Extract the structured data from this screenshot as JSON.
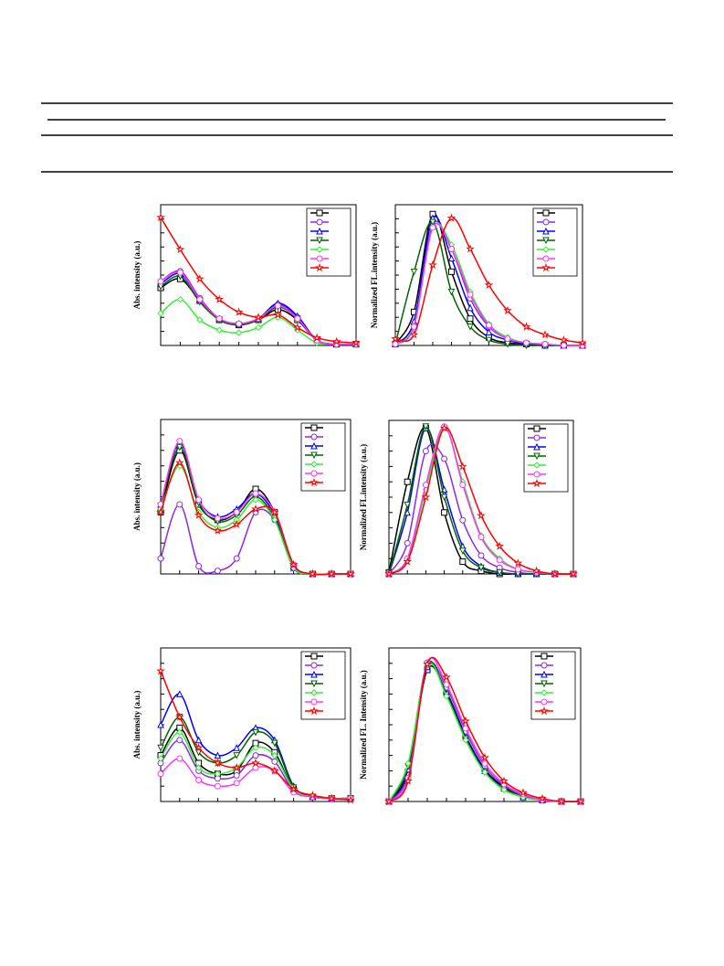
{
  "chart_data": [
    {
      "type": "line",
      "ylabel": "Abs. intensity (a.u.)",
      "x": [
        0,
        10,
        20,
        30,
        40,
        50,
        60,
        70,
        80,
        90,
        100
      ],
      "xlim": [
        0,
        100
      ],
      "ylim": [
        0,
        110
      ],
      "series": [
        {
          "color": "#000000",
          "values": [
            45,
            52,
            35,
            20,
            16,
            20,
            28,
            20,
            4,
            1,
            1
          ]
        },
        {
          "color": "#8a2be2",
          "values": [
            50,
            58,
            37,
            21,
            17,
            21,
            32,
            22,
            4,
            1,
            1
          ]
        },
        {
          "color": "#0000ff",
          "values": [
            48,
            56,
            36,
            21,
            17,
            21,
            33,
            23,
            4,
            1,
            1
          ]
        },
        {
          "color": "#006400",
          "values": [
            46,
            54,
            34,
            20,
            16,
            20,
            30,
            21,
            4,
            1,
            1
          ]
        },
        {
          "color": "#33ee33",
          "values": [
            25,
            36,
            20,
            12,
            10,
            14,
            22,
            12,
            2,
            1,
            1
          ]
        },
        {
          "color": "#ff33ff",
          "values": [
            50,
            57,
            36,
            21,
            17,
            21,
            31,
            21,
            4,
            1,
            1
          ]
        },
        {
          "color": "#ff0000",
          "values": [
            100,
            75,
            52,
            36,
            26,
            22,
            24,
            14,
            6,
            3,
            2
          ]
        }
      ]
    },
    {
      "type": "line",
      "ylabel": "Normalized FL.intensity (a.u.)",
      "x": [
        0,
        10,
        20,
        30,
        40,
        50,
        60,
        70,
        80,
        90,
        100
      ],
      "xlim": [
        0,
        100
      ],
      "ylim": [
        0,
        105
      ],
      "series": [
        {
          "color": "#000000",
          "values": [
            1,
            25,
            98,
            55,
            20,
            6,
            2,
            1,
            0,
            0,
            0
          ]
        },
        {
          "color": "#8a2be2",
          "values": [
            1,
            15,
            90,
            72,
            35,
            14,
            5,
            2,
            1,
            0,
            0
          ]
        },
        {
          "color": "#0000ff",
          "values": [
            1,
            18,
            95,
            65,
            28,
            10,
            4,
            1,
            0,
            0,
            0
          ]
        },
        {
          "color": "#006400",
          "values": [
            1,
            55,
            92,
            40,
            14,
            4,
            1,
            0,
            0,
            0,
            0
          ]
        },
        {
          "color": "#33ee33",
          "values": [
            1,
            15,
            88,
            75,
            40,
            16,
            6,
            2,
            1,
            0,
            0
          ]
        },
        {
          "color": "#ff33ff",
          "values": [
            1,
            14,
            88,
            72,
            38,
            15,
            5,
            2,
            1,
            0,
            0
          ]
        },
        {
          "color": "#ff0000",
          "values": [
            5,
            8,
            60,
            95,
            72,
            45,
            26,
            14,
            8,
            4,
            2
          ]
        }
      ]
    },
    {
      "type": "line",
      "ylabel": "Abs. intensity (a.u.)",
      "x": [
        0,
        10,
        20,
        30,
        40,
        50,
        60,
        70,
        80,
        90,
        100
      ],
      "xlim": [
        0,
        100
      ],
      "ylim": [
        0,
        100
      ],
      "series": [
        {
          "color": "#000000",
          "values": [
            40,
            80,
            45,
            35,
            40,
            55,
            40,
            5,
            0,
            0,
            0
          ]
        },
        {
          "color": "#8a2be2",
          "values": [
            10,
            45,
            5,
            2,
            10,
            40,
            35,
            5,
            0,
            0,
            0
          ]
        },
        {
          "color": "#0000ff",
          "values": [
            45,
            85,
            48,
            37,
            42,
            52,
            38,
            4,
            0,
            0,
            0
          ]
        },
        {
          "color": "#006400",
          "values": [
            44,
            82,
            46,
            34,
            38,
            50,
            36,
            4,
            0,
            0,
            0
          ]
        },
        {
          "color": "#33ee33",
          "values": [
            42,
            70,
            40,
            30,
            35,
            48,
            35,
            4,
            0,
            0,
            0
          ]
        },
        {
          "color": "#ff33ff",
          "values": [
            45,
            86,
            48,
            36,
            40,
            52,
            40,
            6,
            0,
            0,
            0
          ]
        },
        {
          "color": "#ff0000",
          "values": [
            40,
            72,
            38,
            28,
            32,
            42,
            40,
            6,
            0,
            0,
            0
          ]
        }
      ]
    },
    {
      "type": "line",
      "ylabel": "Normalized FL.intensity (a.u.)",
      "x": [
        0,
        10,
        20,
        30,
        40,
        50,
        60,
        70,
        80,
        90,
        100
      ],
      "xlim": [
        0,
        100
      ],
      "ylim": [
        0,
        100
      ],
      "series": [
        {
          "color": "#000000",
          "values": [
            1,
            60,
            95,
            40,
            8,
            2,
            0,
            0,
            0,
            0,
            0
          ]
        },
        {
          "color": "#8a2be2",
          "values": [
            0,
            20,
            80,
            75,
            35,
            12,
            4,
            1,
            0,
            0,
            0
          ]
        },
        {
          "color": "#0000ff",
          "values": [
            0,
            40,
            95,
            55,
            18,
            5,
            1,
            0,
            0,
            0,
            0
          ]
        },
        {
          "color": "#006400",
          "values": [
            0,
            45,
            96,
            50,
            15,
            4,
            1,
            0,
            0,
            0,
            0
          ]
        },
        {
          "color": "#33ee33",
          "values": [
            0,
            10,
            55,
            95,
            60,
            25,
            10,
            3,
            1,
            0,
            0
          ]
        },
        {
          "color": "#ff33ff",
          "values": [
            0,
            10,
            58,
            96,
            58,
            24,
            9,
            3,
            1,
            0,
            0
          ]
        },
        {
          "color": "#ff0000",
          "values": [
            0,
            8,
            50,
            95,
            70,
            38,
            18,
            7,
            2,
            0,
            0
          ]
        }
      ]
    },
    {
      "type": "line",
      "ylabel": "Abs. intensity (a.u.)",
      "x": [
        0,
        10,
        20,
        30,
        40,
        50,
        60,
        70,
        80,
        90,
        100
      ],
      "xlim": [
        0,
        100
      ],
      "ylim": [
        0,
        100
      ],
      "series": [
        {
          "color": "#000000",
          "values": [
            30,
            48,
            25,
            18,
            20,
            38,
            32,
            8,
            3,
            2,
            2
          ]
        },
        {
          "color": "#8a2be2",
          "values": [
            25,
            40,
            20,
            15,
            17,
            30,
            26,
            7,
            3,
            2,
            2
          ]
        },
        {
          "color": "#0000ff",
          "values": [
            50,
            70,
            40,
            30,
            35,
            48,
            40,
            10,
            3,
            2,
            2
          ]
        },
        {
          "color": "#006400",
          "values": [
            35,
            55,
            32,
            25,
            30,
            45,
            38,
            9,
            3,
            2,
            2
          ]
        },
        {
          "color": "#33ee33",
          "values": [
            28,
            45,
            22,
            18,
            22,
            35,
            30,
            8,
            3,
            2,
            2
          ]
        },
        {
          "color": "#ff33ff",
          "values": [
            18,
            28,
            14,
            10,
            12,
            22,
            20,
            6,
            3,
            2,
            2
          ]
        },
        {
          "color": "#ff0000",
          "values": [
            85,
            55,
            35,
            25,
            22,
            25,
            20,
            8,
            4,
            2,
            1
          ]
        }
      ]
    },
    {
      "type": "line",
      "ylabel": "Normalized FL. Intensity (a.u.)",
      "x": [
        0,
        10,
        20,
        30,
        40,
        50,
        60,
        70,
        80,
        90,
        100
      ],
      "xlim": [
        0,
        100
      ],
      "ylim": [
        0,
        105
      ],
      "series": [
        {
          "color": "#000000",
          "values": [
            0,
            20,
            90,
            75,
            45,
            22,
            10,
            4,
            1,
            0,
            0
          ]
        },
        {
          "color": "#8a2be2",
          "values": [
            0,
            18,
            92,
            78,
            48,
            24,
            11,
            4,
            1,
            0,
            0
          ]
        },
        {
          "color": "#0000ff",
          "values": [
            0,
            22,
            92,
            74,
            44,
            21,
            9,
            3,
            1,
            0,
            0
          ]
        },
        {
          "color": "#006400",
          "values": [
            0,
            24,
            94,
            73,
            43,
            20,
            9,
            3,
            1,
            0,
            0
          ]
        },
        {
          "color": "#33ee33",
          "values": [
            0,
            26,
            93,
            72,
            42,
            20,
            8,
            3,
            1,
            0,
            0
          ]
        },
        {
          "color": "#ff33ff",
          "values": [
            0,
            16,
            95,
            80,
            50,
            26,
            12,
            5,
            1,
            0,
            0
          ]
        },
        {
          "color": "#ff0000",
          "values": [
            0,
            14,
            94,
            85,
            55,
            30,
            14,
            6,
            2,
            0,
            0
          ]
        }
      ]
    }
  ]
}
